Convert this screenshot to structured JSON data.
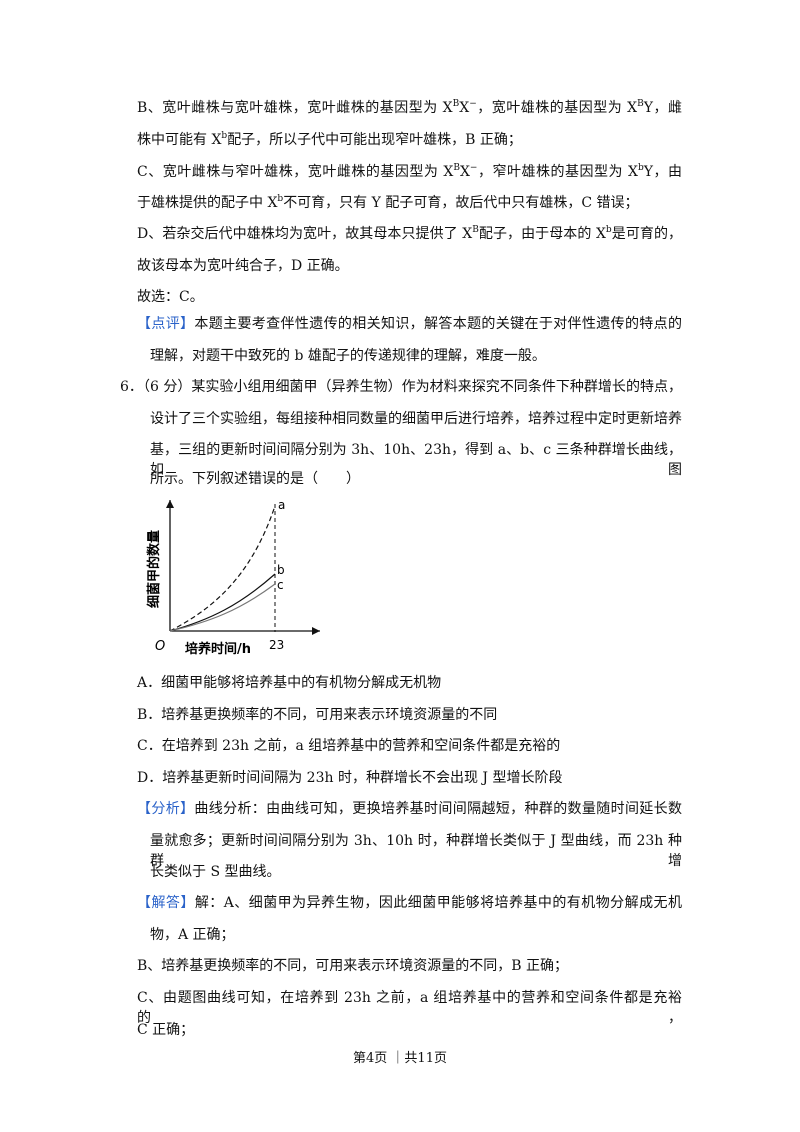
{
  "lines": [
    [
      "B、宽叶雌株与宽叶雄株，宽叶雌株的基因型为 X",
      {
        "sup": "B"
      },
      "X",
      {
        "sup": "−"
      },
      "，宽叶雄株的基因型为 X",
      {
        "sup": "B"
      },
      "Y，雌"
    ],
    [
      "株中可能有 X",
      {
        "sup": "b"
      },
      "配子，所以子代中可能出现窄叶雄株，B 正确；"
    ],
    [
      "C、宽叶雌株与窄叶雄株，宽叶雌株的基因型为 X",
      {
        "sup": "B"
      },
      "X",
      {
        "sup": "−"
      },
      "，窄叶雄株的基因型为 X",
      {
        "sup": "b"
      },
      "Y，由"
    ],
    [
      "于雄株提供的配子中 X",
      {
        "sup": "b"
      },
      "不可育，只有 Y 配子可育，故后代中只有雄株，C 错误；"
    ],
    [
      "D、若杂交后代中雄株均为宽叶，故其母本只提供了 X",
      {
        "sup": "B"
      },
      "配子，由于母本的 X",
      {
        "sup": "b"
      },
      "是可育的，"
    ],
    [
      "故该母本为宽叶纯合子，D 正确。"
    ],
    [
      "故选：C。"
    ],
    [
      {
        "label": "【点评】"
      },
      "本题主要考查伴性遗传的相关知识，解答本题的关键在于对伴性遗传的特点的"
    ],
    [
      "理解，对题干中致死的 b 雄配子的传递规律的理解，难度一般。"
    ],
    [
      "6．（6 分）某实验小组用细菌甲（异养生物）作为材料来探究不同条件下种群增长的特点，"
    ],
    [
      "设计了三个实验组，每组接种相同数量的细菌甲后进行培养，培养过程中定时更新培养"
    ],
    [
      "基，三组的更新时间间隔分别为 3h、10h、23h，得到 a、b、c 三条种群增长曲线，如图"
    ],
    [
      "所示。下列叙述错误的是（　　）"
    ],
    [
      "A．细菌甲能够将培养基中的有机物分解成无机物"
    ],
    [
      "B．培养基更换频率的不同，可用来表示环境资源量的不同"
    ],
    [
      "C．在培养到 23h 之前，a 组培养基中的营养和空间条件都是充裕的"
    ],
    [
      "D．培养基更新时间间隔为 23h 时，种群增长不会出现 J 型增长阶段"
    ],
    [
      {
        "label": "【分析】"
      },
      "曲线分析：由曲线可知，更换培养基时间间隔越短，种群的数量随时间延长数"
    ],
    [
      "量就愈多；更新时间间隔分别为 3h、10h 时，种群增长类似于 J 型曲线，而 23h 种群增"
    ],
    [
      "长类似于 S 型曲线。"
    ],
    [
      {
        "label": "【解答】"
      },
      "解：A、细菌甲为异养生物，因此细菌甲能够将培养基中的有机物分解成无机"
    ],
    [
      "物，A 正确；"
    ],
    [
      "B、培养基更换频率的不同，可用来表示环境资源量的不同，B 正确；"
    ],
    [
      "C、由题图曲线可知，在培养到 23h 之前，a 组培养基中的营养和空间条件都是充裕的，"
    ],
    [
      "C 正确；"
    ]
  ],
  "figure": {
    "y_label": "细菌甲的数量",
    "x_label": "培养时间/h",
    "origin": "O",
    "x_tick": "23",
    "curves": [
      "a",
      "b",
      "c"
    ]
  },
  "footer": "第4页 ｜共11页"
}
